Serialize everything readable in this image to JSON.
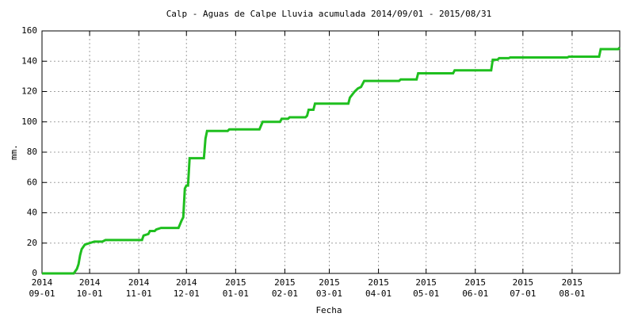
{
  "chart_data": {
    "type": "line",
    "title": "Calp - Aguas de Calpe Lluvia acumulada 2014/09/01 - 2015/08/31",
    "xlabel": "Fecha",
    "ylabel": "mm.",
    "x": [
      "2014-09-01",
      "2014-09-21",
      "2014-09-23",
      "2014-09-24",
      "2014-09-25",
      "2014-09-26",
      "2014-09-28",
      "2014-10-01",
      "2014-10-04",
      "2014-10-09",
      "2014-10-11",
      "2014-11-03",
      "2014-11-04",
      "2014-11-07",
      "2014-11-08",
      "2014-11-11",
      "2014-11-12",
      "2014-11-15",
      "2014-11-26",
      "2014-11-28",
      "2014-11-29",
      "2014-11-30",
      "2014-12-01",
      "2014-12-02",
      "2014-12-03",
      "2014-12-12",
      "2014-12-13",
      "2014-12-14",
      "2014-12-27",
      "2014-12-28",
      "2015-01-16",
      "2015-01-18",
      "2015-01-29",
      "2015-01-30",
      "2015-02-03",
      "2015-02-04",
      "2015-02-14",
      "2015-02-15",
      "2015-02-16",
      "2015-02-19",
      "2015-02-20",
      "2015-03-13",
      "2015-03-14",
      "2015-03-17",
      "2015-03-19",
      "2015-03-21",
      "2015-03-23",
      "2015-04-14",
      "2015-04-15",
      "2015-04-25",
      "2015-04-26",
      "2015-05-18",
      "2015-05-19",
      "2015-06-11",
      "2015-06-12",
      "2015-06-15",
      "2015-06-16",
      "2015-06-22",
      "2015-06-23",
      "2015-07-29",
      "2015-07-30",
      "2015-08-18",
      "2015-08-19",
      "2015-08-30",
      "2015-08-31"
    ],
    "series": [
      {
        "color": "#1fbf1f",
        "values": [
          0,
          0,
          3,
          6,
          12,
          16,
          19,
          20,
          21,
          21,
          22,
          22,
          25,
          26,
          28,
          28,
          29,
          30,
          30,
          35,
          37,
          56,
          58,
          58,
          76,
          76,
          89,
          94,
          94,
          95,
          95,
          100,
          100,
          102,
          102,
          103,
          103,
          104,
          108,
          108,
          112,
          112,
          116,
          120,
          122,
          123,
          127,
          127,
          128,
          128,
          132,
          132,
          134,
          134,
          141,
          141,
          142,
          142,
          142.5,
          142.5,
          143,
          143,
          148,
          148,
          149
        ]
      }
    ],
    "xlim": [
      "2014-09-01",
      "2015-08-31"
    ],
    "xticks": [
      {
        "value": "2014-09-01",
        "label": [
          "2014",
          "09-01"
        ]
      },
      {
        "value": "2014-10-01",
        "label": [
          "2014",
          "10-01"
        ]
      },
      {
        "value": "2014-11-01",
        "label": [
          "2014",
          "11-01"
        ]
      },
      {
        "value": "2014-12-01",
        "label": [
          "2014",
          "12-01"
        ]
      },
      {
        "value": "2015-01-01",
        "label": [
          "2015",
          "01-01"
        ]
      },
      {
        "value": "2015-02-01",
        "label": [
          "2015",
          "02-01"
        ]
      },
      {
        "value": "2015-03-01",
        "label": [
          "2015",
          "03-01"
        ]
      },
      {
        "value": "2015-04-01",
        "label": [
          "2015",
          "04-01"
        ]
      },
      {
        "value": "2015-05-01",
        "label": [
          "2015",
          "05-01"
        ]
      },
      {
        "value": "2015-06-01",
        "label": [
          "2015",
          "06-01"
        ]
      },
      {
        "value": "2015-07-01",
        "label": [
          "2015",
          "07-01"
        ]
      },
      {
        "value": "2015-08-01",
        "label": [
          "2015",
          "08-01"
        ]
      }
    ],
    "ylim": [
      0,
      160
    ],
    "yticks": [
      0,
      20,
      40,
      60,
      80,
      100,
      120,
      140,
      160
    ],
    "grid": true
  }
}
